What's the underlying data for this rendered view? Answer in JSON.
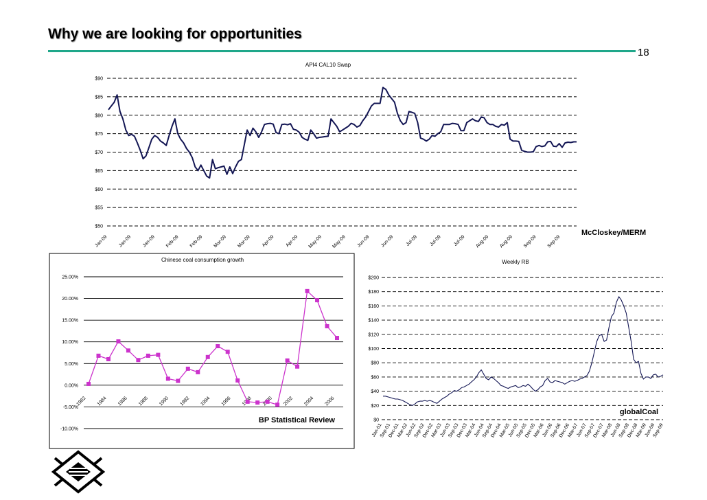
{
  "slide": {
    "title": "Why we are looking for opportunities",
    "page_number": "18",
    "accent_color": "#1fa78a"
  },
  "logo": {
    "icon": "diamond-lattice-logo-icon"
  },
  "chart_data": [
    {
      "id": "api4",
      "type": "line",
      "title": "API4 CAL10 Swap",
      "source": "McCloskey/MERM",
      "xlabel": "",
      "ylabel": "",
      "ylim": [
        50,
        90
      ],
      "y_ticks": [
        "$50",
        "$55",
        "$60",
        "$65",
        "$70",
        "$75",
        "$80",
        "$85",
        "$90"
      ],
      "x_tick_labels": [
        "Jan-09",
        "Jan-09",
        "Jan-09",
        "Feb-09",
        "Feb-09",
        "Mar-09",
        "Mar-09",
        "Apr-09",
        "Apr-09",
        "May-09",
        "May-09",
        "Jun-09",
        "Jun-09",
        "Jul-09",
        "Jul-09",
        "Jul-09",
        "Aug-09",
        "Aug-09",
        "Sep-09",
        "Sep-09"
      ],
      "color": "#131654",
      "grid": "dashed horizontal",
      "series": [
        {
          "name": "API4 CAL10 Swap",
          "values": [
            81.5,
            82.5,
            83.5,
            85.5,
            81,
            79,
            76,
            74.5,
            74.8,
            74.3,
            72.5,
            70.5,
            68.2,
            69,
            71.2,
            73.5,
            74.5,
            74,
            73,
            72.5,
            71.8,
            74.5,
            77,
            79,
            75,
            73.5,
            72.5,
            71,
            70,
            68.5,
            66,
            65,
            66.5,
            65,
            63.5,
            63,
            68,
            65.5,
            65.8,
            66,
            66.2,
            64,
            66,
            64.2,
            66,
            67.5,
            68,
            72,
            76,
            74.5,
            76.5,
            75.5,
            74,
            75.5,
            77.5,
            77.7,
            77.8,
            77.6,
            75.3,
            75,
            77.5,
            77.6,
            77.4,
            77.7,
            76.2,
            76,
            75.4,
            74,
            73.5,
            73.2,
            76,
            75,
            73.8,
            74,
            74.1,
            74.2,
            74.3,
            79,
            78,
            77,
            75.5,
            76,
            76.5,
            77,
            77.8,
            77.5,
            76.8,
            77.2,
            78.5,
            79.5,
            81,
            82.5,
            83.2,
            83.2,
            83.2,
            87.5,
            87,
            85.5,
            84.5,
            83.5,
            80.5,
            78.5,
            77.5,
            78,
            81,
            80.8,
            80.5,
            78,
            73.8,
            73.5,
            73,
            73.5,
            74.5,
            74.3,
            75,
            75.5,
            77.5,
            77.5,
            77.5,
            77.8,
            77.7,
            77.5,
            75.8,
            75.8,
            78,
            78.5,
            79,
            78.5,
            78.3,
            79.5,
            79.3,
            78,
            77.5,
            77.5,
            77,
            76.8,
            77.5,
            77.3,
            78,
            73.5,
            73,
            73,
            72.9,
            70.5,
            70.2,
            70,
            70,
            70.1,
            71.5,
            71.8,
            71.5,
            71.7,
            72.8,
            72.9,
            71.6,
            71.5,
            72.3,
            71.3,
            72.5,
            72.7,
            72.6,
            72.8,
            72.8
          ]
        }
      ]
    },
    {
      "id": "china",
      "type": "line",
      "title": "Chinese coal consumption growth",
      "source": "BP Statistical Review",
      "xlabel": "",
      "ylabel": "",
      "ylim": [
        -10,
        25
      ],
      "y_ticks": [
        "-10.00%",
        "-5.00%",
        "0.00%",
        "5.00%",
        "10.00%",
        "15.00%",
        "20.00%",
        "25.00%"
      ],
      "x_tick_labels": [
        "1982",
        "1984",
        "1986",
        "1988",
        "1990",
        "1992",
        "1994",
        "1996",
        "1998",
        "2000",
        "2002",
        "2004",
        "2006"
      ],
      "x": [
        1982,
        1983,
        1984,
        1985,
        1986,
        1987,
        1988,
        1989,
        1990,
        1991,
        1992,
        1993,
        1994,
        1995,
        1996,
        1997,
        1998,
        1999,
        2000,
        2001,
        2002,
        2003,
        2004,
        2005,
        2006,
        2007
      ],
      "color": "#cc33cc",
      "grid": "solid horizontal",
      "series": [
        {
          "name": "Chinese coal consumption growth",
          "values": [
            0.3,
            6.8,
            6,
            10.1,
            8,
            5.8,
            6.8,
            7,
            1.5,
            1,
            3.8,
            3,
            6.5,
            9,
            7.7,
            1.1,
            -3.8,
            -4,
            -3.8,
            -4.5,
            5.7,
            4.3,
            21.7,
            19.6,
            13.6,
            10.9
          ]
        }
      ]
    },
    {
      "id": "weeklyrb",
      "type": "line",
      "title": "Weekly RB",
      "source": "globalCoal",
      "xlabel": "",
      "ylabel": "",
      "ylim": [
        0,
        200
      ],
      "y_ticks": [
        "$0",
        "$20",
        "$40",
        "$60",
        "$80",
        "$100",
        "$120",
        "$140",
        "$160",
        "$180",
        "$200"
      ],
      "x_tick_labels": [
        "Jan-01",
        "Sep-01",
        "Dec-01",
        "Mar-02",
        "Jun-02",
        "Sep-02",
        "Dec-02",
        "Mar-03",
        "Jun-03",
        "Sep-03",
        "Dec-03",
        "Mar-04",
        "Jun-04",
        "Sep-04",
        "Dec-04",
        "Mar-05",
        "Jun-05",
        "Sep-05",
        "Dec-05",
        "Mar-06",
        "Jun-06",
        "Sep-06",
        "Dec-06",
        "Mar-07",
        "Jun-07",
        "Sep-07",
        "Dec-07",
        "Mar-08",
        "Jun-08",
        "Sep-08",
        "Dec-08",
        "Mar-09",
        "Jun-09",
        "Sep-09"
      ],
      "color": "#131654",
      "grid": "dashed horizontal",
      "series": [
        {
          "name": "Weekly RB",
          "values": [
            33,
            33,
            32,
            31,
            30,
            29,
            29,
            28,
            27,
            25,
            23,
            21,
            20,
            22,
            25,
            26,
            26,
            27,
            26,
            27,
            26,
            24,
            23,
            26,
            29,
            31,
            33,
            36,
            38,
            41,
            40,
            42,
            45,
            46,
            48,
            50,
            53,
            56,
            60,
            66,
            70,
            64,
            58,
            56,
            60,
            58,
            55,
            52,
            48,
            47,
            45,
            44,
            46,
            47,
            48,
            45,
            46,
            48,
            47,
            50,
            47,
            43,
            40,
            42,
            46,
            48,
            55,
            58,
            53,
            52,
            55,
            54,
            53,
            52,
            50,
            52,
            54,
            55,
            54,
            55,
            57,
            58,
            60,
            62,
            68,
            80,
            95,
            110,
            118,
            120,
            110,
            112,
            130,
            145,
            150,
            165,
            173,
            168,
            160,
            150,
            130,
            110,
            85,
            80,
            82,
            65,
            57,
            60,
            60,
            58,
            63,
            64,
            60,
            61,
            63
          ]
        }
      ]
    }
  ]
}
